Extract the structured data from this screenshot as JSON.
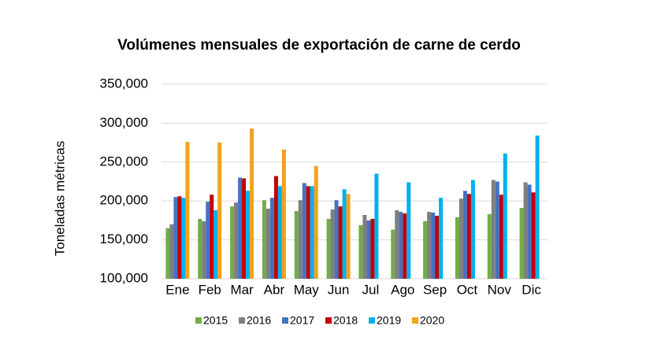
{
  "chart_data": {
    "type": "bar",
    "title": "Volúmenes mensuales de exportación de carne de cerdo",
    "y_label": "Toneladas métricas",
    "categories": [
      "Ene",
      "Feb",
      "Mar",
      "Abr",
      "May",
      "Jun",
      "Jul",
      "Ago",
      "Sep",
      "Oct",
      "Nov",
      "Dic"
    ],
    "series": [
      {
        "name": "2015",
        "color": "#70ad47",
        "values": [
          165000,
          177000,
          193000,
          201000,
          187000,
          177000,
          169000,
          163000,
          174000,
          179000,
          183000,
          191000
        ]
      },
      {
        "name": "2016",
        "color": "#7f7f7f",
        "values": [
          170000,
          174000,
          198000,
          190000,
          201000,
          189000,
          182000,
          188000,
          186000,
          203000,
          227000,
          224000
        ]
      },
      {
        "name": "2017",
        "color": "#4472c4",
        "values": [
          205000,
          199000,
          230000,
          204000,
          223000,
          201000,
          175000,
          186000,
          185000,
          213000,
          225000,
          221000
        ]
      },
      {
        "name": "2018",
        "color": "#c00000",
        "values": [
          206000,
          208000,
          229000,
          232000,
          219000,
          193000,
          177000,
          184000,
          181000,
          209000,
          208000,
          211000
        ]
      },
      {
        "name": "2019",
        "color": "#00b0f0",
        "values": [
          204000,
          188000,
          213000,
          219000,
          219000,
          215000,
          235000,
          224000,
          204000,
          227000,
          261000,
          284000
        ]
      },
      {
        "name": "2020",
        "color": "#f4a11b",
        "values": [
          276000,
          275000,
          293000,
          266000,
          245000,
          209000,
          null,
          null,
          null,
          null,
          null,
          null
        ]
      }
    ],
    "ylim": [
      100000,
      350000
    ],
    "yticks": [
      {
        "value": 100000,
        "label": "100,000"
      },
      {
        "value": 150000,
        "label": "150,000"
      },
      {
        "value": 200000,
        "label": "200,000"
      },
      {
        "value": 250000,
        "label": "250,000"
      },
      {
        "value": 300000,
        "label": "300,000"
      },
      {
        "value": 350000,
        "label": "350,000"
      }
    ],
    "grid": true
  }
}
